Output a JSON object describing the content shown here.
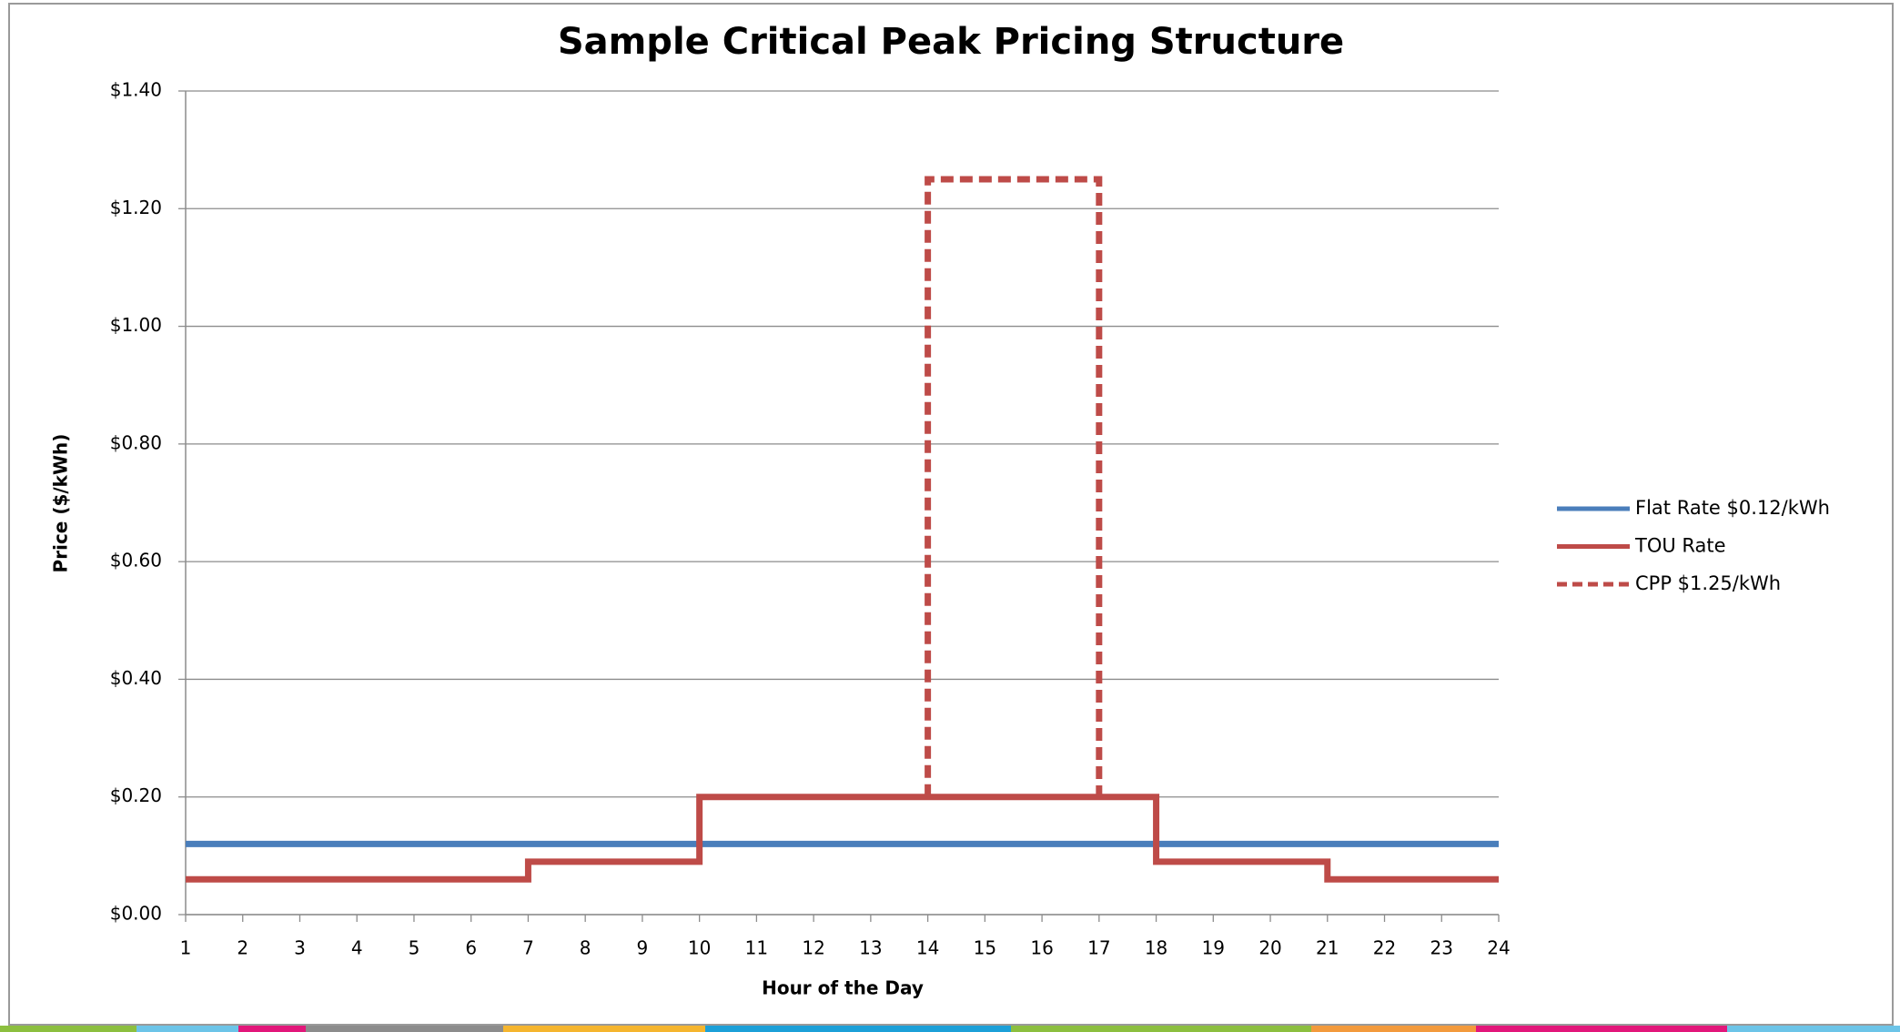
{
  "chart_data": {
    "type": "line",
    "title": "Sample Critical Peak Pricing Structure",
    "x_label": "Hour of the Day",
    "y_label": "Price ($/kWh)",
    "xlim": [
      1,
      24
    ],
    "xticks": [
      1,
      2,
      3,
      4,
      5,
      6,
      7,
      8,
      9,
      10,
      11,
      12,
      13,
      14,
      15,
      16,
      17,
      18,
      19,
      20,
      21,
      22,
      23,
      24
    ],
    "ylim": [
      0,
      1.4
    ],
    "yticks": [
      {
        "value": 0,
        "label": "$0.00"
      },
      {
        "value": 0.2,
        "label": "$0.20"
      },
      {
        "value": 0.4,
        "label": "$0.40"
      },
      {
        "value": 0.6,
        "label": "$0.60"
      },
      {
        "value": 0.8,
        "label": "$0.80"
      },
      {
        "value": 1.0,
        "label": "$1.00"
      },
      {
        "value": 1.2,
        "label": "$1.20"
      },
      {
        "value": 1.4,
        "label": "$1.40"
      }
    ],
    "grid": true,
    "legend": "right",
    "series": [
      {
        "name": "Flat Rate $0.12/kWh",
        "color": "#4a7ebb",
        "dashed": false,
        "x": [
          1,
          24
        ],
        "values": [
          0.12,
          0.12
        ]
      },
      {
        "name": "TOU Rate",
        "color": "#be4b48",
        "dashed": false,
        "x": [
          1,
          7,
          7,
          10,
          10,
          18,
          18,
          21,
          21,
          24
        ],
        "values": [
          0.06,
          0.06,
          0.09,
          0.09,
          0.2,
          0.2,
          0.09,
          0.09,
          0.06,
          0.06
        ]
      },
      {
        "name": "CPP $1.25/kWh",
        "color": "#be4b48",
        "dashed": true,
        "x": [
          14,
          14,
          17,
          17
        ],
        "values": [
          0.2,
          1.25,
          1.25,
          0.2
        ]
      }
    ]
  }
}
